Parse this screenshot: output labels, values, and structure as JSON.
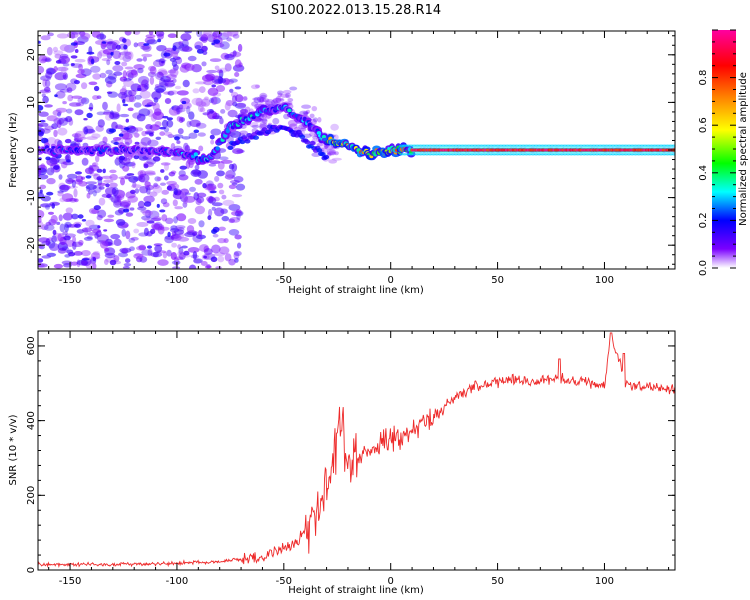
{
  "title": "S100.2022.013.15.28.R14",
  "colors": {
    "colormap": [
      "#ffffff",
      "#7b00ff",
      "#0000ff",
      "#00ffff",
      "#00ff00",
      "#ffff00",
      "#ff8000",
      "#ff0000",
      "#ff00a0"
    ],
    "snr_line": "#ee2a2a"
  },
  "chart_data": [
    {
      "type": "heatmap",
      "xlabel": "Height of straight line (km)",
      "ylabel": "Frequency (Hz)",
      "xlim": [
        -165,
        133
      ],
      "ylim": [
        -25,
        25
      ],
      "x_ticks": [
        -150,
        -100,
        -50,
        0,
        50,
        100
      ],
      "y_ticks": [
        -20,
        -10,
        0,
        10,
        20
      ],
      "colorbar": {
        "label": "Normalized spectral amplitude",
        "range": [
          0,
          1
        ],
        "ticks": [
          0.0,
          0.2,
          0.4,
          0.6,
          0.8
        ]
      },
      "ridge_frequency_hz": [
        {
          "x": -165,
          "y": 0
        },
        {
          "x": -140,
          "y": 0
        },
        {
          "x": -110,
          "y": 0
        },
        {
          "x": -95,
          "y": -1
        },
        {
          "x": -85,
          "y": -2
        },
        {
          "x": -75,
          "y": 5
        },
        {
          "x": -60,
          "y": 8
        },
        {
          "x": -50,
          "y": 9
        },
        {
          "x": -40,
          "y": 6
        },
        {
          "x": -30,
          "y": 2
        },
        {
          "x": -20,
          "y": 1
        },
        {
          "x": -10,
          "y": -1
        },
        {
          "x": 0,
          "y": 0
        },
        {
          "x": 50,
          "y": 0
        },
        {
          "x": 133,
          "y": 0
        }
      ]
    },
    {
      "type": "line",
      "xlabel": "Height of straight line (km)",
      "ylabel": "SNR (10 * v/v)",
      "xlim": [
        -165,
        133
      ],
      "ylim": [
        0,
        640
      ],
      "x_ticks": [
        -150,
        -100,
        -50,
        0,
        50,
        100
      ],
      "y_ticks": [
        0,
        200,
        400,
        600
      ],
      "series": [
        {
          "x": [
            -165,
            -140,
            -120,
            -100,
            -80,
            -60,
            -45,
            -35,
            -28,
            -24,
            -22,
            -20,
            -15,
            -10,
            -5,
            0,
            10,
            20,
            30,
            40,
            50,
            60,
            70,
            80,
            90,
            100,
            103,
            110,
            120,
            133
          ],
          "y": [
            15,
            15,
            15,
            18,
            22,
            35,
            70,
            150,
            230,
            410,
            380,
            250,
            290,
            320,
            340,
            350,
            370,
            410,
            460,
            495,
            505,
            510,
            505,
            510,
            505,
            490,
            630,
            500,
            490,
            485
          ]
        }
      ]
    }
  ]
}
